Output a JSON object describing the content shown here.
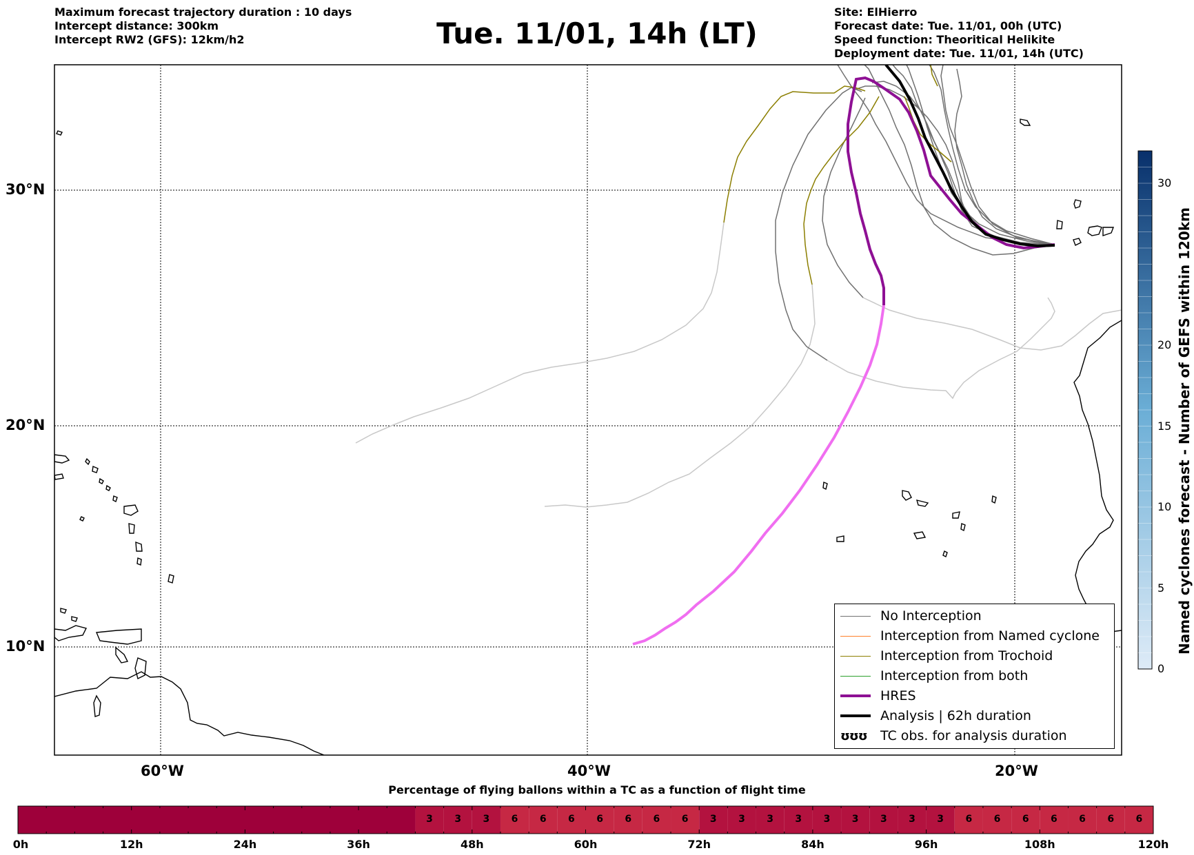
{
  "header_left": {
    "line1": "Maximum forecast trajectory duration : 10 days",
    "line2": "Intercept distance: 300km",
    "line3": "Intercept RW2 (GFS):  12km/h2"
  },
  "title": "Tue. 11/01, 14h (LT)",
  "header_right": {
    "line1": "Site: ElHierro",
    "line2": "Forecast date: Tue. 11/01, 00h (UTC)",
    "line3": "Speed function: Theoritical Helikite",
    "line4": "Deployment date: Tue. 11/01, 14h (UTC)"
  },
  "map": {
    "lat_labels": [
      "30°N",
      "20°N",
      "10°N"
    ],
    "lon_labels": [
      "60°W",
      "40°W",
      "20°W"
    ],
    "colors": {
      "no_interception": "#707070",
      "faded": "#c8c8c8",
      "named_cyclone": "#ff7f2a",
      "trochoid": "#8b7e00",
      "both": "#2ca02c",
      "hres": "#8e1094",
      "hres_faded": "#f06ef0",
      "analysis": "#000000"
    }
  },
  "legend": {
    "items": [
      {
        "label": "No Interception",
        "color": "#707070",
        "width": 1.5
      },
      {
        "label": "Interception from Named cyclone",
        "color": "#ff7f2a",
        "width": 1.5
      },
      {
        "label": "Interception from Trochoid",
        "color": "#8b7e00",
        "width": 1.5
      },
      {
        "label": "Interception from both",
        "color": "#2ca02c",
        "width": 1.5
      },
      {
        "label": "HRES",
        "color": "#8e1094",
        "width": 4
      },
      {
        "label": "Analysis | 62h duration",
        "color": "#000000",
        "width": 4
      },
      {
        "label": "TC obs. for analysis duration",
        "color": "#000000",
        "width": 0,
        "icon": "ʊʊʊ"
      }
    ]
  },
  "colorbar": {
    "title": "Named cyclones forecast - Number of GEFS within 120km",
    "ticks": [
      "0",
      "5",
      "10",
      "15",
      "20",
      "30"
    ],
    "dark_color": "#08306b",
    "light_color": "#deebf7"
  },
  "timeline": {
    "title": "Percentage of flying ballons within a TC as a function of flight time",
    "ticks": [
      "0h",
      "12h",
      "24h",
      "36h",
      "48h",
      "60h",
      "72h",
      "84h",
      "96h",
      "108h",
      "120h"
    ],
    "cells": [
      {
        "start": 0,
        "end": 42,
        "value": "",
        "color": "#9e003a"
      },
      {
        "start": 42,
        "end": 45,
        "value": "3",
        "color": "#b3123f"
      },
      {
        "start": 45,
        "end": 48,
        "value": "3",
        "color": "#b3123f"
      },
      {
        "start": 48,
        "end": 51,
        "value": "3",
        "color": "#b3123f"
      },
      {
        "start": 51,
        "end": 54,
        "value": "6",
        "color": "#c62844"
      },
      {
        "start": 54,
        "end": 57,
        "value": "6",
        "color": "#c62844"
      },
      {
        "start": 57,
        "end": 60,
        "value": "6",
        "color": "#c62844"
      },
      {
        "start": 60,
        "end": 63,
        "value": "6",
        "color": "#c62844"
      },
      {
        "start": 63,
        "end": 66,
        "value": "6",
        "color": "#c62844"
      },
      {
        "start": 66,
        "end": 69,
        "value": "6",
        "color": "#c62844"
      },
      {
        "start": 69,
        "end": 72,
        "value": "6",
        "color": "#c62844"
      },
      {
        "start": 72,
        "end": 75,
        "value": "3",
        "color": "#b3123f"
      },
      {
        "start": 75,
        "end": 78,
        "value": "3",
        "color": "#b3123f"
      },
      {
        "start": 78,
        "end": 81,
        "value": "3",
        "color": "#b3123f"
      },
      {
        "start": 81,
        "end": 84,
        "value": "3",
        "color": "#b3123f"
      },
      {
        "start": 84,
        "end": 87,
        "value": "3",
        "color": "#b3123f"
      },
      {
        "start": 87,
        "end": 90,
        "value": "3",
        "color": "#b3123f"
      },
      {
        "start": 90,
        "end": 93,
        "value": "3",
        "color": "#b3123f"
      },
      {
        "start": 93,
        "end": 96,
        "value": "3",
        "color": "#b3123f"
      },
      {
        "start": 96,
        "end": 99,
        "value": "3",
        "color": "#b3123f"
      },
      {
        "start": 99,
        "end": 102,
        "value": "6",
        "color": "#c62844"
      },
      {
        "start": 102,
        "end": 105,
        "value": "6",
        "color": "#c62844"
      },
      {
        "start": 105,
        "end": 108,
        "value": "6",
        "color": "#c62844"
      },
      {
        "start": 108,
        "end": 111,
        "value": "6",
        "color": "#c62844"
      },
      {
        "start": 111,
        "end": 114,
        "value": "6",
        "color": "#c62844"
      },
      {
        "start": 114,
        "end": 117,
        "value": "6",
        "color": "#c62844"
      },
      {
        "start": 117,
        "end": 120,
        "value": "6",
        "color": "#c62844"
      }
    ]
  }
}
